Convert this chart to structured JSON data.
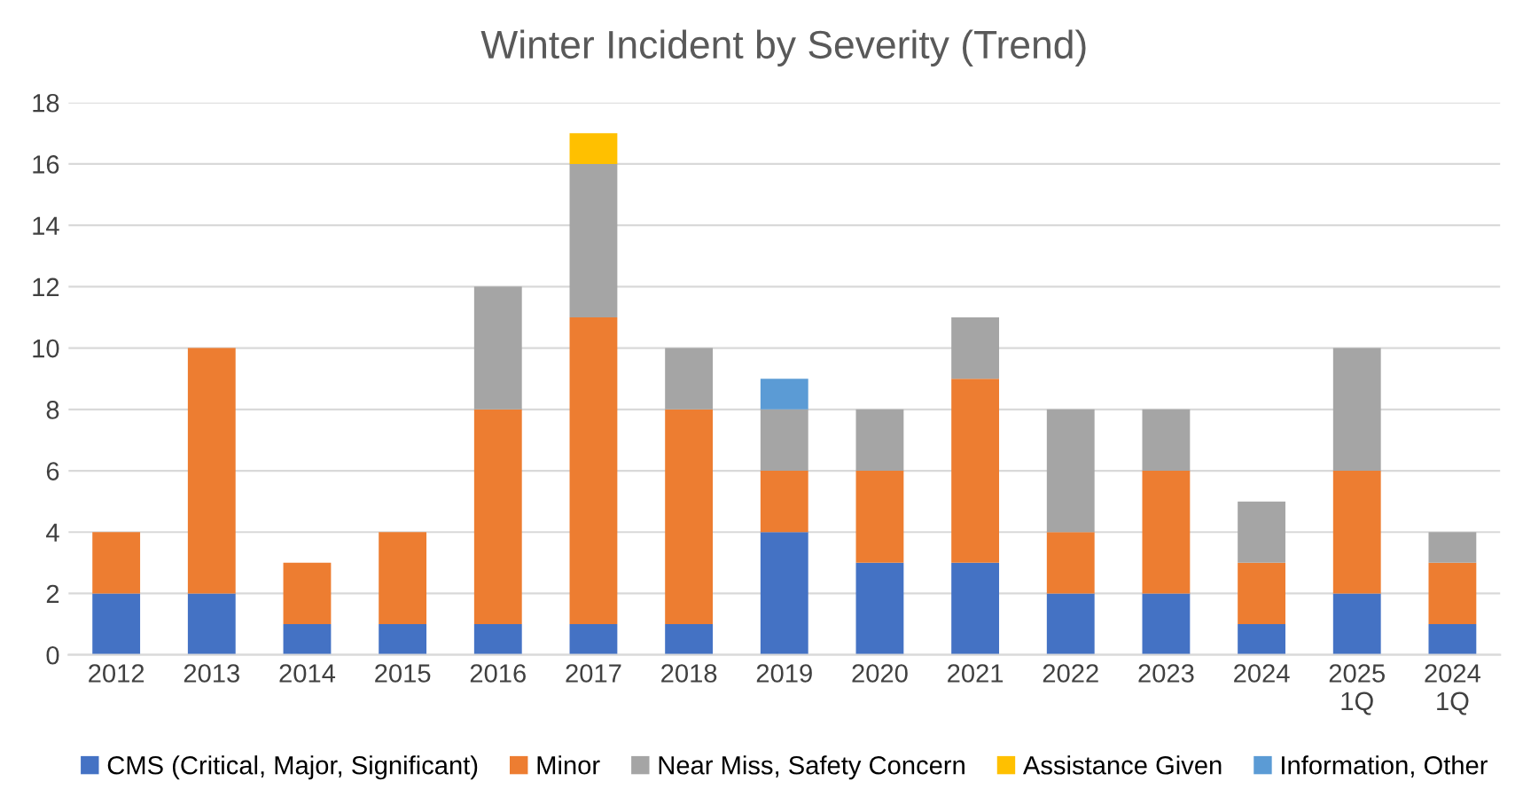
{
  "chart_data": {
    "type": "bar",
    "title": "Winter Incident by Severity (Trend)",
    "stacked": true,
    "categories": [
      "2012",
      "2013",
      "2014",
      "2015",
      "2016",
      "2017",
      "2018",
      "2019",
      "2020",
      "2021",
      "2022",
      "2023",
      "2024",
      "2025\n1Q",
      "2024\n1Q"
    ],
    "series": [
      {
        "name": "CMS (Critical, Major, Significant)",
        "color": "#4472c4",
        "values": [
          2,
          2,
          1,
          1,
          1,
          1,
          1,
          4,
          3,
          3,
          2,
          2,
          1,
          2,
          1
        ]
      },
      {
        "name": "Minor",
        "color": "#ed7d31",
        "values": [
          2,
          8,
          2,
          3,
          7,
          10,
          7,
          2,
          3,
          6,
          2,
          4,
          2,
          4,
          2
        ]
      },
      {
        "name": "Near Miss, Safety Concern",
        "color": "#a5a5a5",
        "values": [
          null,
          null,
          null,
          null,
          4,
          5,
          2,
          2,
          2,
          2,
          4,
          2,
          2,
          4,
          1
        ]
      },
      {
        "name": "Assistance Given",
        "color": "#ffc000",
        "values": [
          null,
          null,
          null,
          null,
          null,
          1,
          null,
          null,
          null,
          null,
          null,
          null,
          null,
          null,
          null
        ]
      },
      {
        "name": "Information, Other",
        "color": "#5b9bd5",
        "values": [
          null,
          null,
          null,
          null,
          null,
          null,
          null,
          1,
          null,
          null,
          null,
          null,
          null,
          null,
          null
        ]
      }
    ],
    "ylim": [
      0,
      18
    ],
    "yticks": [
      0,
      2,
      4,
      6,
      8,
      10,
      12,
      14,
      16,
      18
    ],
    "grid": "y",
    "legend": "bottom"
  }
}
